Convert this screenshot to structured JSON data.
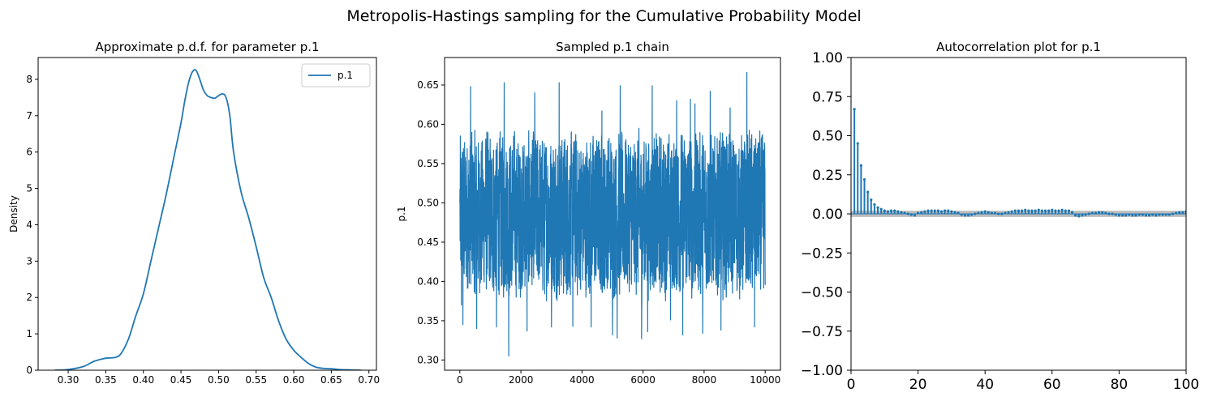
{
  "figure": {
    "suptitle": "Metropolis-Hastings sampling for the Cumulative Probability Model",
    "line_color": "#1f77b4",
    "confidence_band_color": "#bdbdbd"
  },
  "chart_data": [
    {
      "type": "line",
      "title": "Approximate p.d.f. for parameter p.1",
      "xlabel": "",
      "ylabel": "Density",
      "xlim": [
        0.26,
        0.71
      ],
      "ylim": [
        0,
        8.6
      ],
      "xticks": [
        0.3,
        0.35,
        0.4,
        0.45,
        0.5,
        0.55,
        0.6,
        0.65,
        0.7
      ],
      "xtick_labels": [
        "0.30",
        "0.35",
        "0.40",
        "0.45",
        "0.50",
        "0.55",
        "0.60",
        "0.65",
        "0.70"
      ],
      "yticks": [
        0,
        1,
        2,
        3,
        4,
        5,
        6,
        7,
        8
      ],
      "ytick_labels": [
        "0",
        "1",
        "2",
        "3",
        "4",
        "5",
        "6",
        "7",
        "8"
      ],
      "legend": {
        "entries": [
          "p.1"
        ],
        "placement": "upper right"
      },
      "series": [
        {
          "name": "p.1",
          "x": [
            0.282,
            0.3,
            0.32,
            0.335,
            0.35,
            0.362,
            0.37,
            0.38,
            0.39,
            0.4,
            0.41,
            0.42,
            0.43,
            0.44,
            0.45,
            0.455,
            0.46,
            0.465,
            0.47,
            0.475,
            0.48,
            0.485,
            0.49,
            0.495,
            0.5,
            0.505,
            0.51,
            0.515,
            0.52,
            0.53,
            0.54,
            0.55,
            0.56,
            0.57,
            0.58,
            0.59,
            0.6,
            0.61,
            0.62,
            0.63,
            0.64,
            0.65,
            0.66,
            0.67,
            0.69
          ],
          "y": [
            0.0,
            0.02,
            0.1,
            0.25,
            0.33,
            0.35,
            0.45,
            0.85,
            1.5,
            2.1,
            3.0,
            3.9,
            4.8,
            5.8,
            6.8,
            7.4,
            7.9,
            8.2,
            8.25,
            8.0,
            7.7,
            7.55,
            7.5,
            7.48,
            7.55,
            7.6,
            7.5,
            7.0,
            6.0,
            4.9,
            4.2,
            3.4,
            2.55,
            2.0,
            1.35,
            0.85,
            0.55,
            0.35,
            0.18,
            0.08,
            0.05,
            0.04,
            0.02,
            0.01,
            0.0
          ]
        }
      ]
    },
    {
      "type": "line",
      "title": "Sampled p.1 chain",
      "xlabel": "",
      "ylabel": "p.1",
      "xlim": [
        -500,
        10500
      ],
      "ylim": [
        0.287,
        0.685
      ],
      "xticks": [
        0,
        2000,
        4000,
        6000,
        8000,
        10000
      ],
      "xtick_labels": [
        "0",
        "2000",
        "4000",
        "6000",
        "8000",
        "10000"
      ],
      "yticks": [
        0.3,
        0.35,
        0.4,
        0.45,
        0.5,
        0.55,
        0.6,
        0.65
      ],
      "ytick_labels": [
        "0.30",
        "0.35",
        "0.40",
        "0.45",
        "0.50",
        "0.55",
        "0.60",
        "0.65"
      ],
      "n_samples": 10000,
      "start_value": 0.5,
      "typical_range": [
        0.37,
        0.6
      ],
      "series": [
        {
          "name": "",
          "x": [
            1,
            50,
            100,
            350,
            550,
            1200,
            1450,
            1600,
            2200,
            2450,
            3000,
            3250,
            3700,
            4300,
            4650,
            5000,
            5150,
            5250,
            5950,
            6150,
            6300,
            6900,
            7100,
            7300,
            7550,
            7700,
            7950,
            8200,
            8550,
            8850,
            9400,
            9650
          ],
          "y": [
            0.5,
            0.37,
            0.345,
            0.648,
            0.34,
            0.342,
            0.653,
            0.305,
            0.337,
            0.64,
            0.342,
            0.653,
            0.343,
            0.342,
            0.617,
            0.332,
            0.328,
            0.649,
            0.327,
            0.336,
            0.649,
            0.351,
            0.63,
            0.332,
            0.632,
            0.626,
            0.334,
            0.642,
            0.338,
            0.621,
            0.666,
            0.342
          ]
        }
      ]
    },
    {
      "type": "bar",
      "title": "Autocorrelation plot for p.1",
      "xlabel": "",
      "ylabel": "",
      "xlim": [
        0,
        100
      ],
      "ylim": [
        -1.0,
        1.0
      ],
      "xticks": [
        0,
        20,
        40,
        60,
        80,
        100
      ],
      "xtick_labels": [
        "0",
        "20",
        "40",
        "60",
        "80",
        "100"
      ],
      "yticks": [
        -1.0,
        -0.75,
        -0.5,
        -0.25,
        0.0,
        0.25,
        0.5,
        0.75,
        1.0
      ],
      "ytick_labels": [
        "−1.00",
        "−0.75",
        "−0.50",
        "−0.25",
        "0.00",
        "0.25",
        "0.50",
        "0.75",
        "1.00"
      ],
      "confidence_band": [
        -0.02,
        0.02
      ],
      "series": [
        {
          "name": "",
          "lags": [
            1,
            2,
            3,
            4,
            5,
            6,
            7,
            8,
            9,
            10,
            11,
            12,
            13,
            14,
            15,
            16,
            17,
            18,
            19,
            20,
            21,
            22,
            23,
            24,
            25,
            26,
            27,
            28,
            29,
            30,
            31,
            32,
            33,
            34,
            35,
            36,
            37,
            38,
            39,
            40,
            41,
            42,
            43,
            44,
            45,
            46,
            47,
            48,
            49,
            50,
            51,
            52,
            53,
            54,
            55,
            56,
            57,
            58,
            59,
            60,
            61,
            62,
            63,
            64,
            65,
            66,
            67,
            68,
            69,
            70,
            71,
            72,
            73,
            74,
            75,
            76,
            77,
            78,
            79,
            80,
            81,
            82,
            83,
            84,
            85,
            86,
            87,
            88,
            89,
            90,
            91,
            92,
            93,
            94,
            95,
            96,
            97,
            98,
            99,
            100
          ],
          "values": [
            0.67,
            0.45,
            0.31,
            0.22,
            0.14,
            0.09,
            0.06,
            0.04,
            0.03,
            0.02,
            0.015,
            0.02,
            0.02,
            0.015,
            0.01,
            0.005,
            0.0,
            -0.005,
            -0.01,
            0.005,
            0.01,
            0.015,
            0.02,
            0.02,
            0.02,
            0.02,
            0.015,
            0.02,
            0.02,
            0.015,
            0.01,
            0.005,
            -0.005,
            -0.01,
            -0.01,
            -0.005,
            0.0,
            0.005,
            0.01,
            0.015,
            0.01,
            0.005,
            0.005,
            0.0,
            0.0,
            0.005,
            0.01,
            0.015,
            0.02,
            0.02,
            0.02,
            0.025,
            0.02,
            0.02,
            0.02,
            0.025,
            0.02,
            0.02,
            0.02,
            0.025,
            0.02,
            0.02,
            0.025,
            0.02,
            0.02,
            0.01,
            -0.01,
            -0.015,
            -0.01,
            -0.005,
            0.0,
            0.005,
            0.005,
            0.01,
            0.01,
            0.005,
            0.0,
            0.0,
            -0.005,
            -0.01,
            -0.01,
            -0.01,
            -0.005,
            -0.01,
            -0.01,
            -0.005,
            -0.005,
            -0.01,
            -0.01,
            -0.005,
            -0.01,
            -0.005,
            -0.005,
            -0.005,
            -0.005,
            0.0,
            0.005,
            0.01,
            0.01,
            0.015
          ]
        }
      ]
    }
  ]
}
